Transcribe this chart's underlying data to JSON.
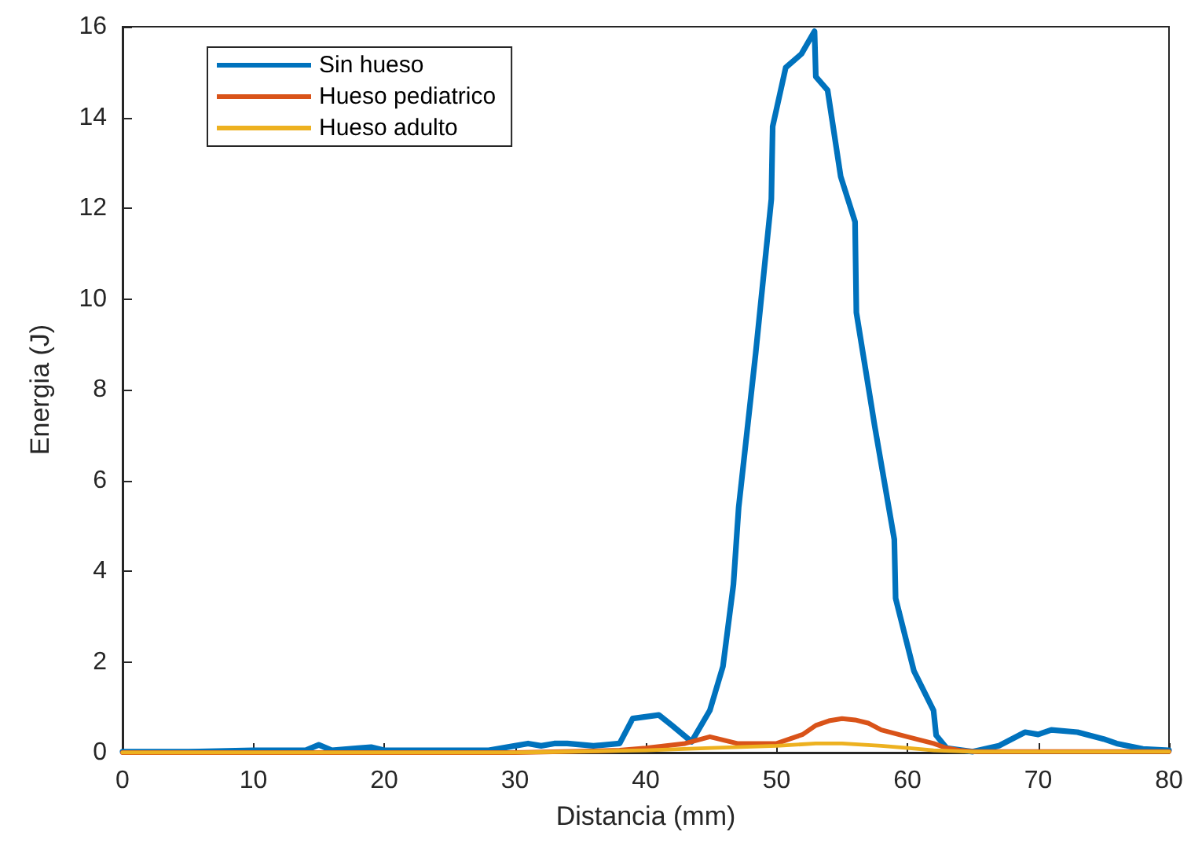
{
  "chart_data": {
    "type": "line",
    "xlabel": "Distancia (mm)",
    "ylabel": "Energia (J)",
    "xlim": [
      0,
      80
    ],
    "ylim": [
      0,
      16
    ],
    "xticks": [
      0,
      10,
      20,
      30,
      40,
      50,
      60,
      70,
      80
    ],
    "yticks": [
      0,
      2,
      4,
      6,
      8,
      10,
      12,
      14,
      16
    ],
    "grid": false,
    "legend": "top left",
    "marker": "none",
    "line_style": "solid",
    "series": [
      {
        "name": "Sin hueso",
        "color": "#0072bd",
        "x": [
          0,
          5,
          10,
          12,
          14,
          15,
          16,
          18,
          19,
          20,
          25,
          28,
          30,
          31,
          32,
          33,
          34,
          36,
          38,
          39,
          41,
          42,
          43.5,
          44.9,
          45.9,
          46.7,
          47.1,
          48.4,
          49.6,
          49.7,
          50.7,
          51.9,
          52.9,
          53,
          53.9,
          54.9,
          56,
          56.1,
          57.5,
          59,
          59.1,
          60.5,
          62,
          62.2,
          63,
          65,
          67,
          69,
          70,
          71,
          73,
          75,
          76,
          78,
          80
        ],
        "values": [
          0.02,
          0.02,
          0.05,
          0.05,
          0.05,
          0.17,
          0.05,
          0.1,
          0.12,
          0.05,
          0.05,
          0.05,
          0.15,
          0.2,
          0.15,
          0.2,
          0.2,
          0.15,
          0.2,
          0.75,
          0.83,
          0.6,
          0.24,
          0.93,
          1.9,
          3.7,
          5.4,
          8.8,
          12.2,
          13.8,
          15.1,
          15.4,
          15.9,
          14.9,
          14.6,
          12.7,
          11.7,
          9.7,
          7.2,
          4.7,
          3.4,
          1.8,
          0.93,
          0.38,
          0.1,
          0.02,
          0.15,
          0.45,
          0.4,
          0.5,
          0.45,
          0.3,
          0.2,
          0.08,
          0.05
        ]
      },
      {
        "name": "Hueso pediatrico",
        "color": "#d95319",
        "x": [
          0,
          30,
          38,
          40,
          43,
          44.9,
          47,
          50,
          51,
          52,
          53,
          54,
          55,
          56,
          57,
          58,
          60,
          62,
          63,
          64,
          65,
          80
        ],
        "values": [
          0,
          0,
          0.05,
          0.1,
          0.2,
          0.35,
          0.2,
          0.2,
          0.3,
          0.4,
          0.6,
          0.7,
          0.75,
          0.72,
          0.65,
          0.5,
          0.35,
          0.2,
          0.1,
          0.05,
          0.02,
          0.02
        ]
      },
      {
        "name": "Hueso adulto",
        "color": "#edb120",
        "x": [
          0,
          30,
          40,
          45,
          50,
          53,
          55,
          58,
          60,
          62,
          65,
          80
        ],
        "values": [
          0,
          0,
          0.05,
          0.1,
          0.15,
          0.2,
          0.2,
          0.15,
          0.1,
          0.05,
          0.02,
          0.02
        ]
      }
    ]
  }
}
